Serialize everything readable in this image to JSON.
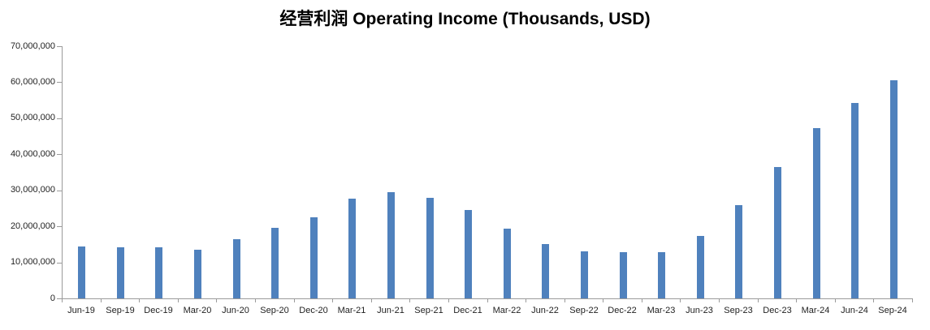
{
  "title": "经营利润 Operating Income (Thousands, USD)",
  "colors": {
    "bar": "#4F81BD",
    "axis": "#9B9B9B",
    "label": "#1F1F1F",
    "background": "#FFFFFF"
  },
  "chart_data": {
    "type": "bar",
    "title": "经营利润 Operating Income (Thousands, USD)",
    "xlabel": "",
    "ylabel": "",
    "categories": [
      "Jun-19",
      "Sep-19",
      "Dec-19",
      "Mar-20",
      "Jun-20",
      "Sep-20",
      "Dec-20",
      "Mar-21",
      "Jun-21",
      "Sep-21",
      "Dec-21",
      "Mar-22",
      "Jun-22",
      "Sep-22",
      "Dec-22",
      "Mar-23",
      "Jun-23",
      "Sep-23",
      "Dec-23",
      "Mar-24",
      "Jun-24",
      "Sep-24"
    ],
    "values": [
      14500000,
      14100000,
      14200000,
      13600000,
      16500000,
      19500000,
      22600000,
      27700000,
      29500000,
      28000000,
      24600000,
      19400000,
      15100000,
      13100000,
      12900000,
      12900000,
      17400000,
      25900000,
      36500000,
      47200000,
      54200000,
      60500000
    ],
    "ylim": [
      0,
      70000000
    ],
    "y_tick_interval": 10000000,
    "y_tick_labels": [
      "0",
      "10,000,000",
      "20,000,000",
      "30,000,000",
      "40,000,000",
      "50,000,000",
      "60,000,000",
      "70,000,000"
    ],
    "grid": false,
    "legend": false,
    "bar_color": "#4F81BD"
  }
}
